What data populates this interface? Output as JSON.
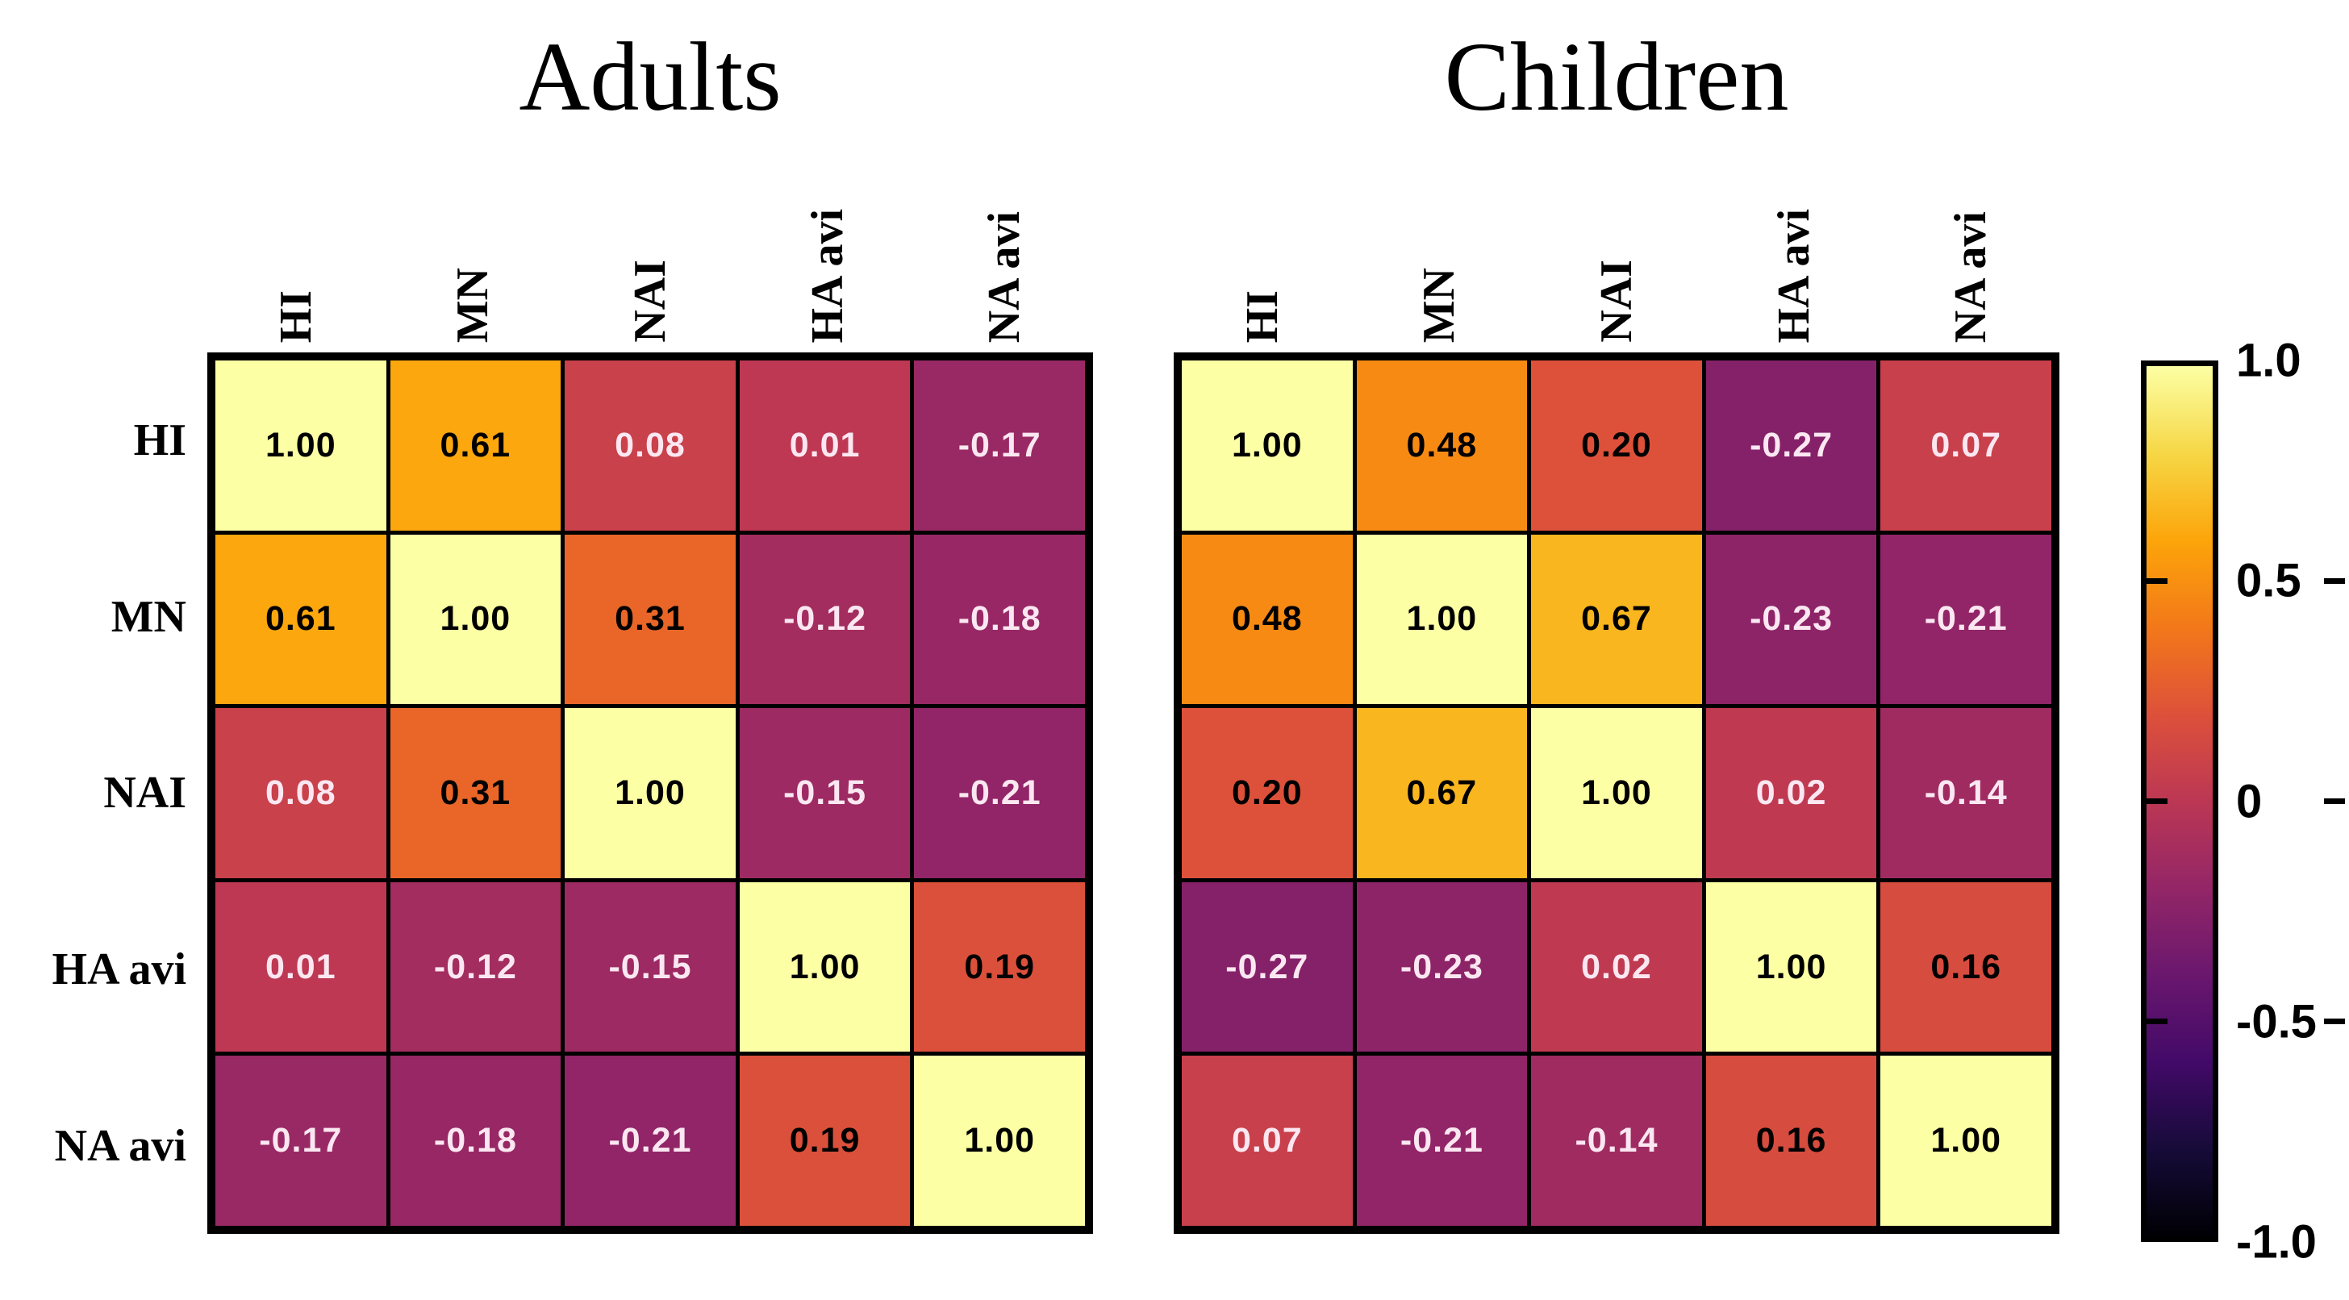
{
  "chart_data": {
    "type": "heatmap",
    "subtype": "correlation-matrix",
    "panels": [
      {
        "title": "Adults",
        "row_labels": [
          "HI",
          "MN",
          "NAI",
          "HA avi",
          "NA avi"
        ],
        "col_labels": [
          "HI",
          "MN",
          "NAI",
          "HA avi",
          "NA avi"
        ],
        "show_row_labels": true,
        "matrix": [
          [
            1.0,
            0.61,
            0.08,
            0.01,
            -0.17
          ],
          [
            0.61,
            1.0,
            0.31,
            -0.12,
            -0.18
          ],
          [
            0.08,
            0.31,
            1.0,
            -0.15,
            -0.21
          ],
          [
            0.01,
            -0.12,
            -0.15,
            1.0,
            0.19
          ],
          [
            -0.17,
            -0.18,
            -0.21,
            0.19,
            1.0
          ]
        ]
      },
      {
        "title": "Children",
        "row_labels": [
          "HI",
          "MN",
          "NAI",
          "HA avi",
          "NA avi"
        ],
        "col_labels": [
          "HI",
          "MN",
          "NAI",
          "HA avi",
          "NA avi"
        ],
        "show_row_labels": false,
        "matrix": [
          [
            1.0,
            0.48,
            0.2,
            -0.27,
            0.07
          ],
          [
            0.48,
            1.0,
            0.67,
            -0.23,
            -0.21
          ],
          [
            0.2,
            0.67,
            1.0,
            0.02,
            -0.14
          ],
          [
            -0.27,
            -0.23,
            0.02,
            1.0,
            0.16
          ],
          [
            0.07,
            -0.21,
            -0.14,
            0.16,
            1.0
          ]
        ]
      }
    ],
    "value_decimals": 2,
    "colorbar": {
      "min": -1.0,
      "max": 1.0,
      "tick_labels": [
        "1.0",
        "0.5",
        "0",
        "-0.5",
        "-1.0"
      ],
      "tick_values": [
        1.0,
        0.5,
        0,
        -0.5,
        -1.0
      ],
      "position": "right"
    },
    "colormap": {
      "name": "inferno",
      "domain": [
        -1,
        1
      ],
      "stops": [
        "#000004",
        "#160b39",
        "#420a68",
        "#6a176e",
        "#932667",
        "#bc3754",
        "#dd513a",
        "#f37819",
        "#fca50a",
        "#f6d746",
        "#fcffa4"
      ]
    },
    "colors": {
      "background": "#ffffff",
      "grid_line": "#000000",
      "cell_text_dark": "#000000",
      "cell_text_light": "#fbe7f1",
      "label_text": "#000000"
    },
    "layout": {
      "grid": true,
      "legend_position": "right"
    }
  }
}
